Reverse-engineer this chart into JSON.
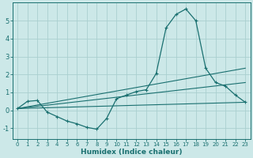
{
  "xlabel": "Humidex (Indice chaleur)",
  "bg_color": "#cce8e8",
  "grid_color": "#aacfcf",
  "line_color": "#1a7070",
  "xlim": [
    -0.5,
    23.5
  ],
  "ylim": [
    -1.6,
    6.0
  ],
  "xticks": [
    0,
    1,
    2,
    3,
    4,
    5,
    6,
    7,
    8,
    9,
    10,
    11,
    12,
    13,
    14,
    15,
    16,
    17,
    18,
    19,
    20,
    21,
    22,
    23
  ],
  "yticks": [
    -1,
    0,
    1,
    2,
    3,
    4,
    5
  ],
  "series_main": {
    "x": [
      0,
      1,
      2,
      3,
      4,
      5,
      6,
      7,
      8,
      9,
      10,
      11,
      12,
      13,
      14,
      15,
      16,
      17,
      18,
      19,
      20,
      21,
      22,
      23
    ],
    "y": [
      0.1,
      0.5,
      0.55,
      -0.1,
      -0.35,
      -0.6,
      -0.75,
      -0.95,
      -1.05,
      -0.45,
      0.65,
      0.85,
      1.05,
      1.15,
      2.05,
      4.6,
      5.35,
      5.65,
      5.0,
      2.35,
      1.55,
      1.35,
      0.85,
      0.45
    ]
  },
  "series_lines": [
    {
      "x": [
        0,
        23
      ],
      "y": [
        0.1,
        0.45
      ]
    },
    {
      "x": [
        0,
        23
      ],
      "y": [
        0.1,
        1.55
      ]
    },
    {
      "x": [
        0,
        23
      ],
      "y": [
        0.1,
        2.35
      ]
    }
  ]
}
